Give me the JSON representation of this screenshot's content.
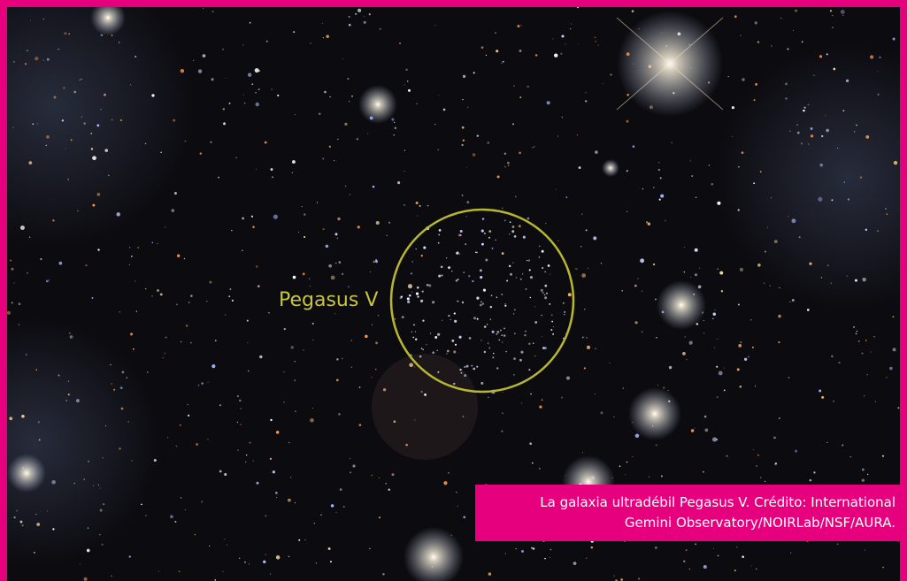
{
  "image": {
    "annotation": "Pegasus V",
    "caption": [
      "La galaxia ultradébil Pegasus V. Crédito: International",
      "Gemini Observatory/NOIRLab/NSF/AURA."
    ]
  }
}
